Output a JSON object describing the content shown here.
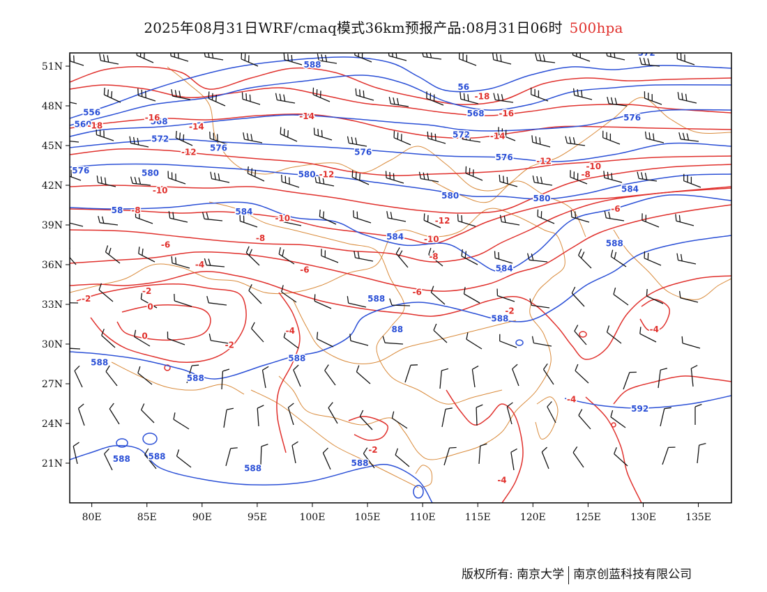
{
  "title": {
    "main": "2025年08月31日WRF/cmaq模式36km预报产品:08月31日06时",
    "level": "500hpa"
  },
  "axes": {
    "lat_labels": [
      "51N",
      "48N",
      "45N",
      "42N",
      "39N",
      "36N",
      "33N",
      "30N",
      "27N",
      "24N",
      "21N"
    ],
    "lon_labels": [
      "80E",
      "85E",
      "90E",
      "95E",
      "100E",
      "105E",
      "110E",
      "115E",
      "120E",
      "125E",
      "130E",
      "135E"
    ]
  },
  "map_data": {
    "lon_range": [
      78,
      138
    ],
    "lat_range": [
      18,
      52
    ],
    "geopotential_labels": [
      {
        "text": "588",
        "lon": 100.0,
        "lat": 50.9
      },
      {
        "text": "572",
        "lon": 130.3,
        "lat": 51.8
      },
      {
        "text": "56",
        "lon": 113.7,
        "lat": 49.2
      },
      {
        "text": "568",
        "lon": 114.8,
        "lat": 47.2
      },
      {
        "text": "556",
        "lon": 80.0,
        "lat": 47.3
      },
      {
        "text": "560",
        "lon": 79.2,
        "lat": 46.4
      },
      {
        "text": "568",
        "lon": 86.1,
        "lat": 46.6
      },
      {
        "text": "572",
        "lon": 86.2,
        "lat": 45.3
      },
      {
        "text": "576",
        "lon": 91.5,
        "lat": 44.6
      },
      {
        "text": "576",
        "lon": 104.6,
        "lat": 44.3
      },
      {
        "text": "572",
        "lon": 113.5,
        "lat": 45.6
      },
      {
        "text": "576",
        "lon": 79.0,
        "lat": 42.9
      },
      {
        "text": "576",
        "lon": 117.4,
        "lat": 43.9
      },
      {
        "text": "576",
        "lon": 129.0,
        "lat": 46.9
      },
      {
        "text": "580",
        "lon": 85.3,
        "lat": 42.7
      },
      {
        "text": "580",
        "lon": 99.5,
        "lat": 42.6
      },
      {
        "text": "580",
        "lon": 112.5,
        "lat": 41.0
      },
      {
        "text": "584",
        "lon": 128.8,
        "lat": 41.5
      },
      {
        "text": "580",
        "lon": 120.8,
        "lat": 40.8
      },
      {
        "text": "58",
        "lon": 82.3,
        "lat": 39.9
      },
      {
        "text": "584",
        "lon": 93.8,
        "lat": 39.8
      },
      {
        "text": "584",
        "lon": 107.5,
        "lat": 37.9
      },
      {
        "text": "588",
        "lon": 127.4,
        "lat": 37.4
      },
      {
        "text": "584",
        "lon": 117.4,
        "lat": 35.5
      },
      {
        "text": "588",
        "lon": 105.8,
        "lat": 33.2
      },
      {
        "text": "588",
        "lon": 117.0,
        "lat": 31.7
      },
      {
        "text": "88",
        "lon": 107.7,
        "lat": 30.9
      },
      {
        "text": "588",
        "lon": 80.7,
        "lat": 28.4
      },
      {
        "text": "588",
        "lon": 98.6,
        "lat": 28.7
      },
      {
        "text": "588",
        "lon": 89.4,
        "lat": 27.2
      },
      {
        "text": "592",
        "lon": 129.7,
        "lat": 24.9
      },
      {
        "text": "588",
        "lon": 82.7,
        "lat": 21.1
      },
      {
        "text": "588",
        "lon": 85.9,
        "lat": 21.3
      },
      {
        "text": "588",
        "lon": 94.6,
        "lat": 20.4
      },
      {
        "text": "588",
        "lon": 104.3,
        "lat": 20.8
      }
    ],
    "temperature_labels": [
      {
        "text": "-18",
        "lon": 115.4,
        "lat": 48.5
      },
      {
        "text": "-16",
        "lon": 117.6,
        "lat": 47.2
      },
      {
        "text": "-18",
        "lon": 80.3,
        "lat": 46.3
      },
      {
        "text": "-16",
        "lon": 85.5,
        "lat": 46.9
      },
      {
        "text": "-14",
        "lon": 89.5,
        "lat": 46.2
      },
      {
        "text": "-14",
        "lon": 99.5,
        "lat": 47.0
      },
      {
        "text": "-14",
        "lon": 116.8,
        "lat": 45.5
      },
      {
        "text": "-12",
        "lon": 88.8,
        "lat": 44.3
      },
      {
        "text": "-12",
        "lon": 101.3,
        "lat": 42.6
      },
      {
        "text": "-12",
        "lon": 121.0,
        "lat": 43.6
      },
      {
        "text": "-10",
        "lon": 125.5,
        "lat": 43.2
      },
      {
        "text": "-8",
        "lon": 124.8,
        "lat": 42.6
      },
      {
        "text": "-10",
        "lon": 86.2,
        "lat": 41.4
      },
      {
        "text": "-8",
        "lon": 84.0,
        "lat": 39.9
      },
      {
        "text": "-6",
        "lon": 127.5,
        "lat": 40.0
      },
      {
        "text": "-10",
        "lon": 97.3,
        "lat": 39.3
      },
      {
        "text": "-12",
        "lon": 111.8,
        "lat": 39.1
      },
      {
        "text": "-8",
        "lon": 95.3,
        "lat": 37.8
      },
      {
        "text": "-10",
        "lon": 110.8,
        "lat": 37.7
      },
      {
        "text": "-6",
        "lon": 86.7,
        "lat": 37.3
      },
      {
        "text": "-8",
        "lon": 111.0,
        "lat": 36.4
      },
      {
        "text": "-4",
        "lon": 89.8,
        "lat": 35.8
      },
      {
        "text": "-6",
        "lon": 99.3,
        "lat": 35.4
      },
      {
        "text": "-2",
        "lon": 85.0,
        "lat": 33.8
      },
      {
        "text": "-6",
        "lon": 109.5,
        "lat": 33.7
      },
      {
        "text": "-2",
        "lon": 79.5,
        "lat": 33.2
      },
      {
        "text": "-2",
        "lon": 117.9,
        "lat": 32.3
      },
      {
        "text": "0",
        "lon": 85.3,
        "lat": 32.6
      },
      {
        "text": "-4",
        "lon": 98.0,
        "lat": 30.8
      },
      {
        "text": "-4",
        "lon": 131.0,
        "lat": 30.9
      },
      {
        "text": "0",
        "lon": 84.8,
        "lat": 30.4
      },
      {
        "text": "-2",
        "lon": 92.5,
        "lat": 29.7
      },
      {
        "text": "-4",
        "lon": 123.5,
        "lat": 25.6
      },
      {
        "text": "-2",
        "lon": 105.5,
        "lat": 21.8
      },
      {
        "text": "-4",
        "lon": 117.2,
        "lat": 19.5
      }
    ]
  },
  "footer": {
    "copyright": "版权所有: 南京大学",
    "company": "南京创蓝科技有限公司"
  },
  "colors": {
    "geopotential": "#2a4fd6",
    "temperature": "#e0302c",
    "boundary": "#d98a3a",
    "wind": "#111111",
    "level_text": "#e0302c"
  }
}
